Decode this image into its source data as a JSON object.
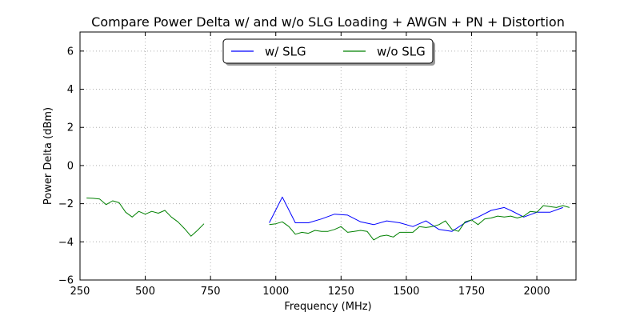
{
  "chart_data": {
    "type": "line",
    "title": "Compare Power Delta w/ and w/o SLG Loading + AWGN + PN + Distortion",
    "xlabel": "Frequency (MHz)",
    "ylabel": "Power Delta (dBm)",
    "xlim": [
      250,
      2150
    ],
    "ylim": [
      -6,
      7
    ],
    "xticks": [
      250,
      500,
      750,
      1000,
      1250,
      1500,
      1750,
      2000
    ],
    "yticks": [
      -6,
      -4,
      -2,
      0,
      2,
      4,
      6
    ],
    "grid": true,
    "legend": "top-center",
    "series": [
      {
        "name": "w/ SLG",
        "color": "#0000ff",
        "segments": [
          {
            "x": [
              975,
              1025,
              1075,
              1125,
              1175,
              1225,
              1275,
              1325,
              1375,
              1425,
              1475,
              1525,
              1575,
              1625,
              1675,
              1725,
              1775,
              1825,
              1875,
              1900,
              1950,
              2000,
              2050,
              2100
            ],
            "y": [
              -3.0,
              -1.65,
              -3.0,
              -3.0,
              -2.8,
              -2.55,
              -2.6,
              -2.95,
              -3.1,
              -2.9,
              -3.0,
              -3.2,
              -2.9,
              -3.35,
              -3.45,
              -3.0,
              -2.7,
              -2.35,
              -2.2,
              -2.35,
              -2.7,
              -2.45,
              -2.45,
              -2.2
            ]
          }
        ]
      },
      {
        "name": "w/o SLG",
        "color": "#008000",
        "segments": [
          {
            "x": [
              275,
              300,
              325,
              350,
              375,
              400,
              425,
              450,
              475,
              500,
              525,
              550,
              575,
              600,
              625,
              650,
              675,
              700,
              725
            ],
            "y": [
              -1.7,
              -1.72,
              -1.75,
              -2.05,
              -1.85,
              -1.95,
              -2.45,
              -2.7,
              -2.4,
              -2.55,
              -2.4,
              -2.5,
              -2.35,
              -2.7,
              -2.95,
              -3.3,
              -3.7,
              -3.4,
              -3.05
            ]
          },
          {
            "x": [
              975,
              1000,
              1025,
              1050,
              1075,
              1100,
              1125,
              1150,
              1175,
              1200,
              1225,
              1250,
              1275,
              1300,
              1325,
              1350,
              1375,
              1400,
              1425,
              1450,
              1475,
              1500,
              1525,
              1550,
              1575,
              1600,
              1625,
              1650,
              1675,
              1700,
              1725,
              1750,
              1775,
              1800,
              1825,
              1850,
              1875,
              1900,
              1925,
              1950,
              1975,
              2000,
              2025,
              2050,
              2075,
              2100,
              2125
            ],
            "y": [
              -3.1,
              -3.05,
              -2.95,
              -3.2,
              -3.6,
              -3.5,
              -3.55,
              -3.4,
              -3.45,
              -3.45,
              -3.35,
              -3.2,
              -3.5,
              -3.45,
              -3.4,
              -3.45,
              -3.9,
              -3.7,
              -3.65,
              -3.75,
              -3.5,
              -3.5,
              -3.5,
              -3.2,
              -3.25,
              -3.2,
              -3.1,
              -2.9,
              -3.35,
              -3.45,
              -2.95,
              -2.85,
              -3.1,
              -2.8,
              -2.75,
              -2.65,
              -2.7,
              -2.65,
              -2.75,
              -2.65,
              -2.4,
              -2.45,
              -2.1,
              -2.15,
              -2.2,
              -2.1,
              -2.2
            ]
          }
        ]
      }
    ]
  }
}
